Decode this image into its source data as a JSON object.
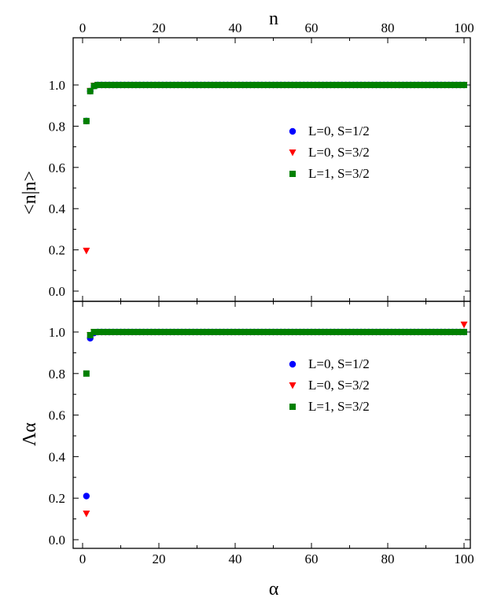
{
  "chart_data": [
    {
      "type": "scatter",
      "panel": "top",
      "ylabel": "<n|n>",
      "x_top_label": "n",
      "xlim": [
        -2,
        100
      ],
      "ylim": [
        -0.05,
        1.1
      ],
      "x_ticks": [
        "0",
        "20",
        "40",
        "60",
        "80",
        "100"
      ],
      "y_ticks": [
        "0.0",
        "0.2",
        "0.4",
        "0.6",
        "0.8",
        "1.0"
      ],
      "grid": false,
      "legend_position": "right",
      "series": [
        {
          "name": "L=0, S=1/2",
          "color": "#0000ff",
          "marker": "circle",
          "points": [
            [
              1,
              0.825
            ],
            [
              2,
              0.97
            ],
            [
              3,
              0.995
            ],
            [
              4,
              1.0
            ]
          ],
          "tail_from": 5,
          "tail_to": 100,
          "tail_value": 1.0
        },
        {
          "name": "L=0, S=3/2",
          "color": "#ff0000",
          "marker": "triangle-down",
          "points": [
            [
              1,
              0.195
            ],
            [
              2,
              0.97
            ],
            [
              3,
              0.995
            ],
            [
              4,
              1.0
            ]
          ],
          "tail_from": 5,
          "tail_to": 100,
          "tail_value": 1.0
        },
        {
          "name": "L=1, S=3/2",
          "color": "#008000",
          "marker": "square",
          "points": [
            [
              1,
              0.825
            ],
            [
              2,
              0.97
            ],
            [
              3,
              0.995
            ],
            [
              4,
              1.0
            ]
          ],
          "tail_from": 5,
          "tail_to": 100,
          "tail_value": 1.0
        }
      ]
    },
    {
      "type": "scatter",
      "panel": "bottom",
      "ylabel": "Λα",
      "xlabel": "α",
      "xlim": [
        -2,
        100
      ],
      "ylim": [
        0.0,
        1.15
      ],
      "x_ticks": [
        "0",
        "20",
        "40",
        "60",
        "80",
        "100"
      ],
      "y_ticks": [
        "0.0",
        "0.2",
        "0.4",
        "0.6",
        "0.8",
        "1.0"
      ],
      "grid": false,
      "legend_position": "right",
      "series": [
        {
          "name": "L=0, S=1/2",
          "color": "#0000ff",
          "marker": "circle",
          "points": [
            [
              1,
              0.21
            ],
            [
              2,
              0.97
            ],
            [
              3,
              0.995
            ],
            [
              4,
              1.0
            ]
          ],
          "tail_from": 5,
          "tail_to": 100,
          "tail_value": 1.0
        },
        {
          "name": "L=0, S=3/2",
          "color": "#ff0000",
          "marker": "triangle-down",
          "points": [
            [
              1,
              0.125
            ],
            [
              2,
              0.985
            ],
            [
              3,
              1.0
            ],
            [
              100,
              1.035
            ]
          ],
          "tail_from": 4,
          "tail_to": 99,
          "tail_value": 1.0
        },
        {
          "name": "L=1, S=3/2",
          "color": "#008000",
          "marker": "square",
          "points": [
            [
              1,
              0.8
            ],
            [
              2,
              0.985
            ],
            [
              3,
              1.0
            ]
          ],
          "tail_from": 4,
          "tail_to": 100,
          "tail_value": 1.0
        }
      ]
    }
  ]
}
